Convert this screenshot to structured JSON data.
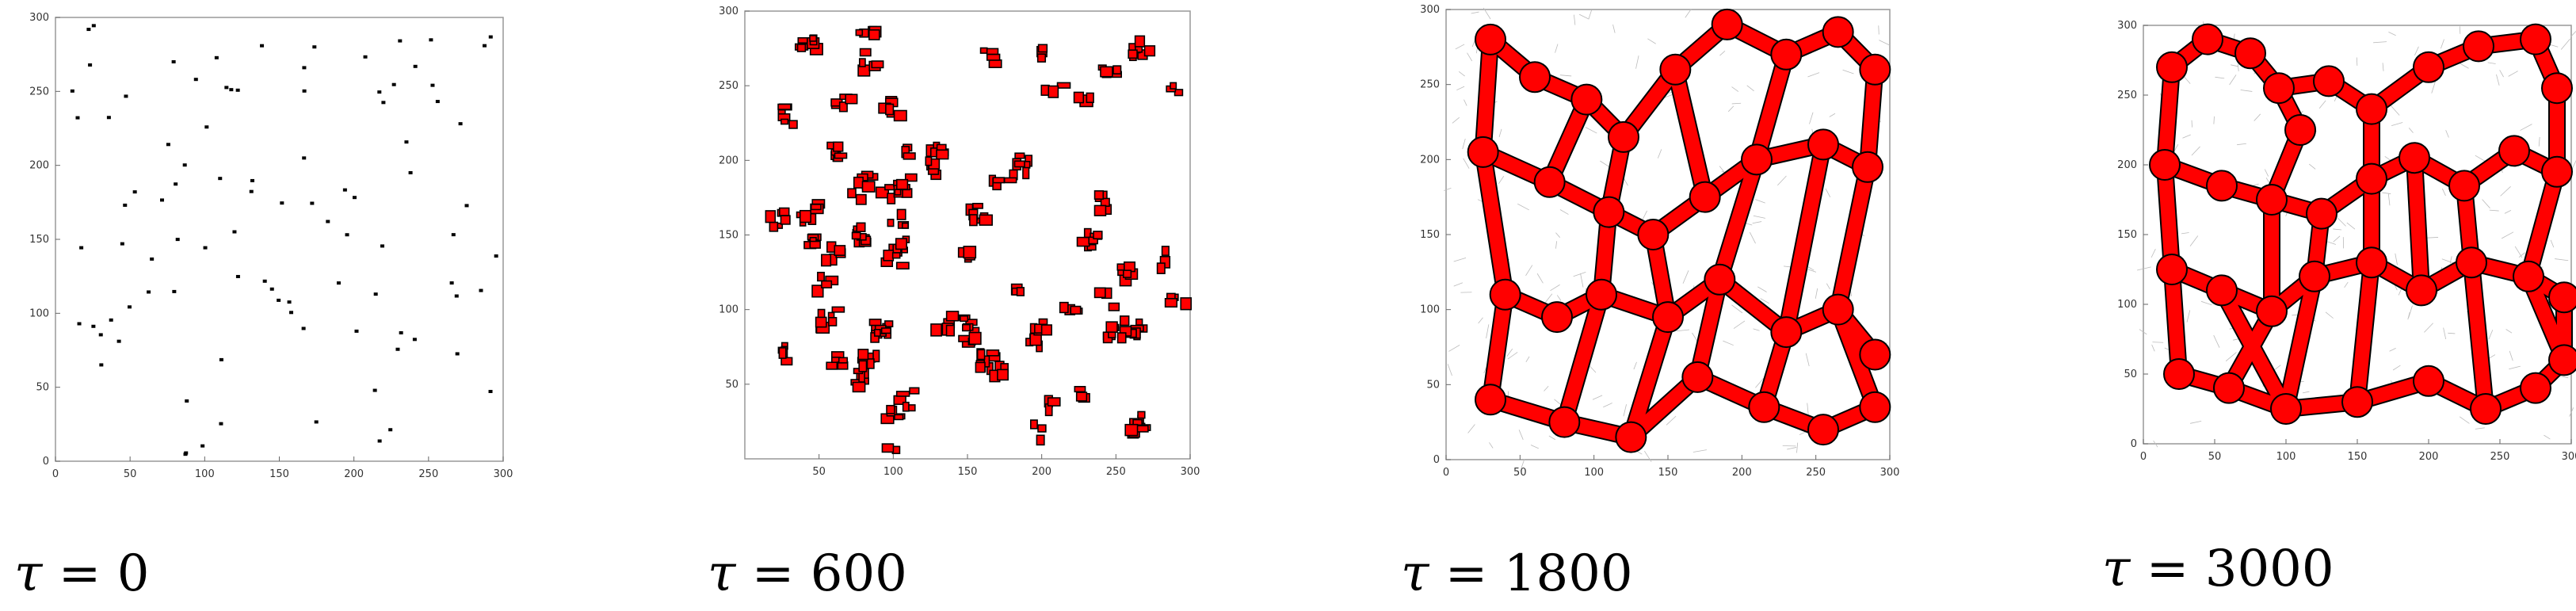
{
  "panels": [
    {
      "id": "t0",
      "caption_symbol": "τ",
      "caption_value": "= 0",
      "x_ticks": [
        "0",
        "50",
        "100",
        "150",
        "200",
        "250",
        "300"
      ],
      "y_ticks": [
        "0",
        "50",
        "100",
        "150",
        "200",
        "250",
        "300"
      ],
      "xlim": [
        0,
        300
      ],
      "ylim": [
        0,
        300
      ],
      "cell_color": "#000000",
      "style": "points"
    },
    {
      "id": "t600",
      "caption_symbol": "τ",
      "caption_value": "= 600",
      "x_ticks": [
        "50",
        "100",
        "150",
        "200",
        "250",
        "300"
      ],
      "y_ticks": [
        "50",
        "100",
        "150",
        "200",
        "250",
        "300"
      ],
      "xlim": [
        0,
        300
      ],
      "ylim": [
        0,
        300
      ],
      "cell_color": "#ff0000",
      "style": "clusters"
    },
    {
      "id": "t1800",
      "caption_symbol": "τ",
      "caption_value": "= 1800",
      "x_ticks": [
        "0",
        "50",
        "100",
        "150",
        "200",
        "250",
        "300"
      ],
      "y_ticks": [
        "0",
        "50",
        "100",
        "150",
        "200",
        "250",
        "300"
      ],
      "xlim": [
        0,
        300
      ],
      "ylim": [
        0,
        300
      ],
      "cell_color": "#ff0000",
      "style": "network"
    },
    {
      "id": "t3000",
      "caption_symbol": "τ",
      "caption_value": "= 3000",
      "x_ticks": [
        "0",
        "50",
        "100",
        "150",
        "200",
        "250",
        "300"
      ],
      "y_ticks": [
        "0",
        "50",
        "100",
        "150",
        "200",
        "250",
        "300"
      ],
      "xlim": [
        0,
        300
      ],
      "ylim": [
        0,
        300
      ],
      "cell_color": "#ff0000",
      "style": "network"
    }
  ]
}
